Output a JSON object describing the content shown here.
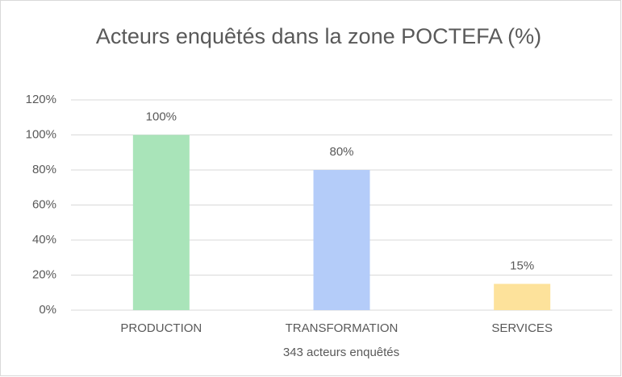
{
  "chart_data": {
    "type": "bar",
    "title": "Acteurs enquêtés dans la zone POCTEFA (%)",
    "categories": [
      "PRODUCTION",
      "TRANSFORMATION",
      "SERVICES"
    ],
    "values": [
      100,
      80,
      15
    ],
    "value_labels": [
      "100%",
      "80%",
      "15%"
    ],
    "colors": [
      "#a9e4b9",
      "#b4ccf9",
      "#fde29b"
    ],
    "xlabel": "343 acteurs enquêtés",
    "ylim": [
      0,
      120
    ],
    "yticks": [
      {
        "value": 0,
        "label": "0%"
      },
      {
        "value": 20,
        "label": "20%"
      },
      {
        "value": 40,
        "label": "40%"
      },
      {
        "value": 60,
        "label": "60%"
      },
      {
        "value": 80,
        "label": "80%"
      },
      {
        "value": 100,
        "label": "100%"
      },
      {
        "value": 120,
        "label": "120%"
      }
    ],
    "grid": true
  }
}
